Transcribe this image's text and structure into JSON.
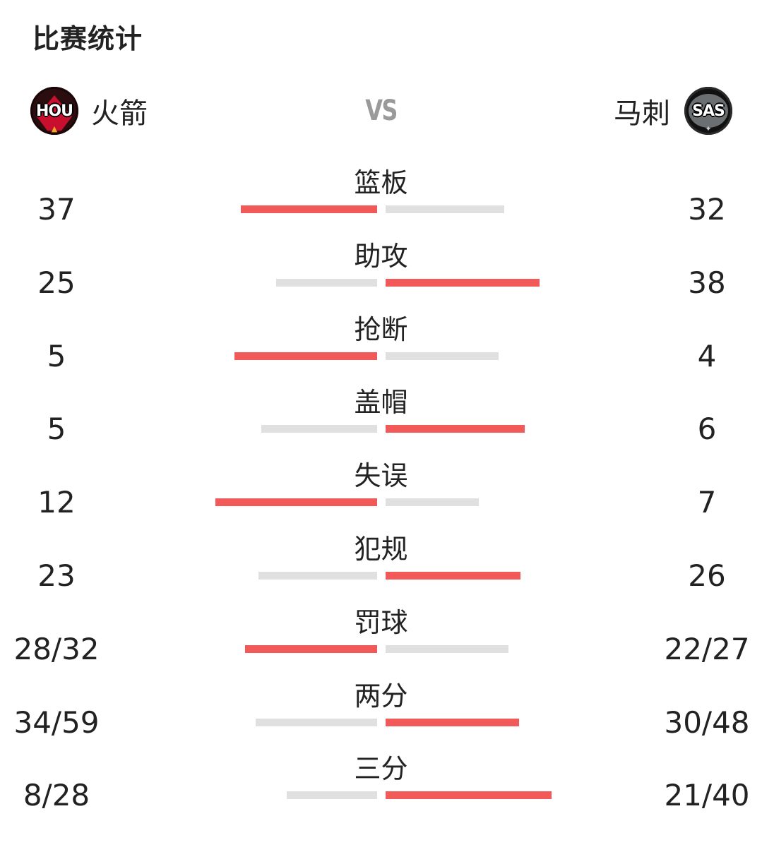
{
  "title": "比赛统计",
  "home": {
    "name": "火箭",
    "logo_text": "HOU",
    "logo_icon": "rockets-logo-icon"
  },
  "away": {
    "name": "马刺",
    "logo_text": "SAS",
    "logo_icon": "spurs-logo-icon"
  },
  "vs": "VS",
  "colors": {
    "leader_bar": "#f25a5a",
    "trailing_bar": "#e0e0e0"
  },
  "stats": [
    {
      "label": "篮板",
      "home": "37",
      "away": "32",
      "home_bar": 0.92,
      "away_bar": 0.8,
      "leader": "home"
    },
    {
      "label": "助攻",
      "home": "25",
      "away": "38",
      "home_bar": 0.68,
      "away_bar": 1.04,
      "leader": "away"
    },
    {
      "label": "抢断",
      "home": "5",
      "away": "4",
      "home_bar": 0.96,
      "away_bar": 0.76,
      "leader": "home"
    },
    {
      "label": "盖帽",
      "home": "5",
      "away": "6",
      "home_bar": 0.78,
      "away_bar": 0.94,
      "leader": "away"
    },
    {
      "label": "失误",
      "home": "12",
      "away": "7",
      "home_bar": 1.09,
      "away_bar": 0.63,
      "leader": "home"
    },
    {
      "label": "犯规",
      "home": "23",
      "away": "26",
      "home_bar": 0.8,
      "away_bar": 0.91,
      "leader": "away"
    },
    {
      "label": "罚球",
      "home": "28/32",
      "away": "22/27",
      "home_bar": 0.89,
      "away_bar": 0.83,
      "leader": "home"
    },
    {
      "label": "两分",
      "home": "34/59",
      "away": "30/48",
      "home_bar": 0.82,
      "away_bar": 0.9,
      "leader": "away"
    },
    {
      "label": "三分",
      "home": "8/28",
      "away": "21/40",
      "home_bar": 0.61,
      "away_bar": 1.12,
      "leader": "away"
    }
  ]
}
